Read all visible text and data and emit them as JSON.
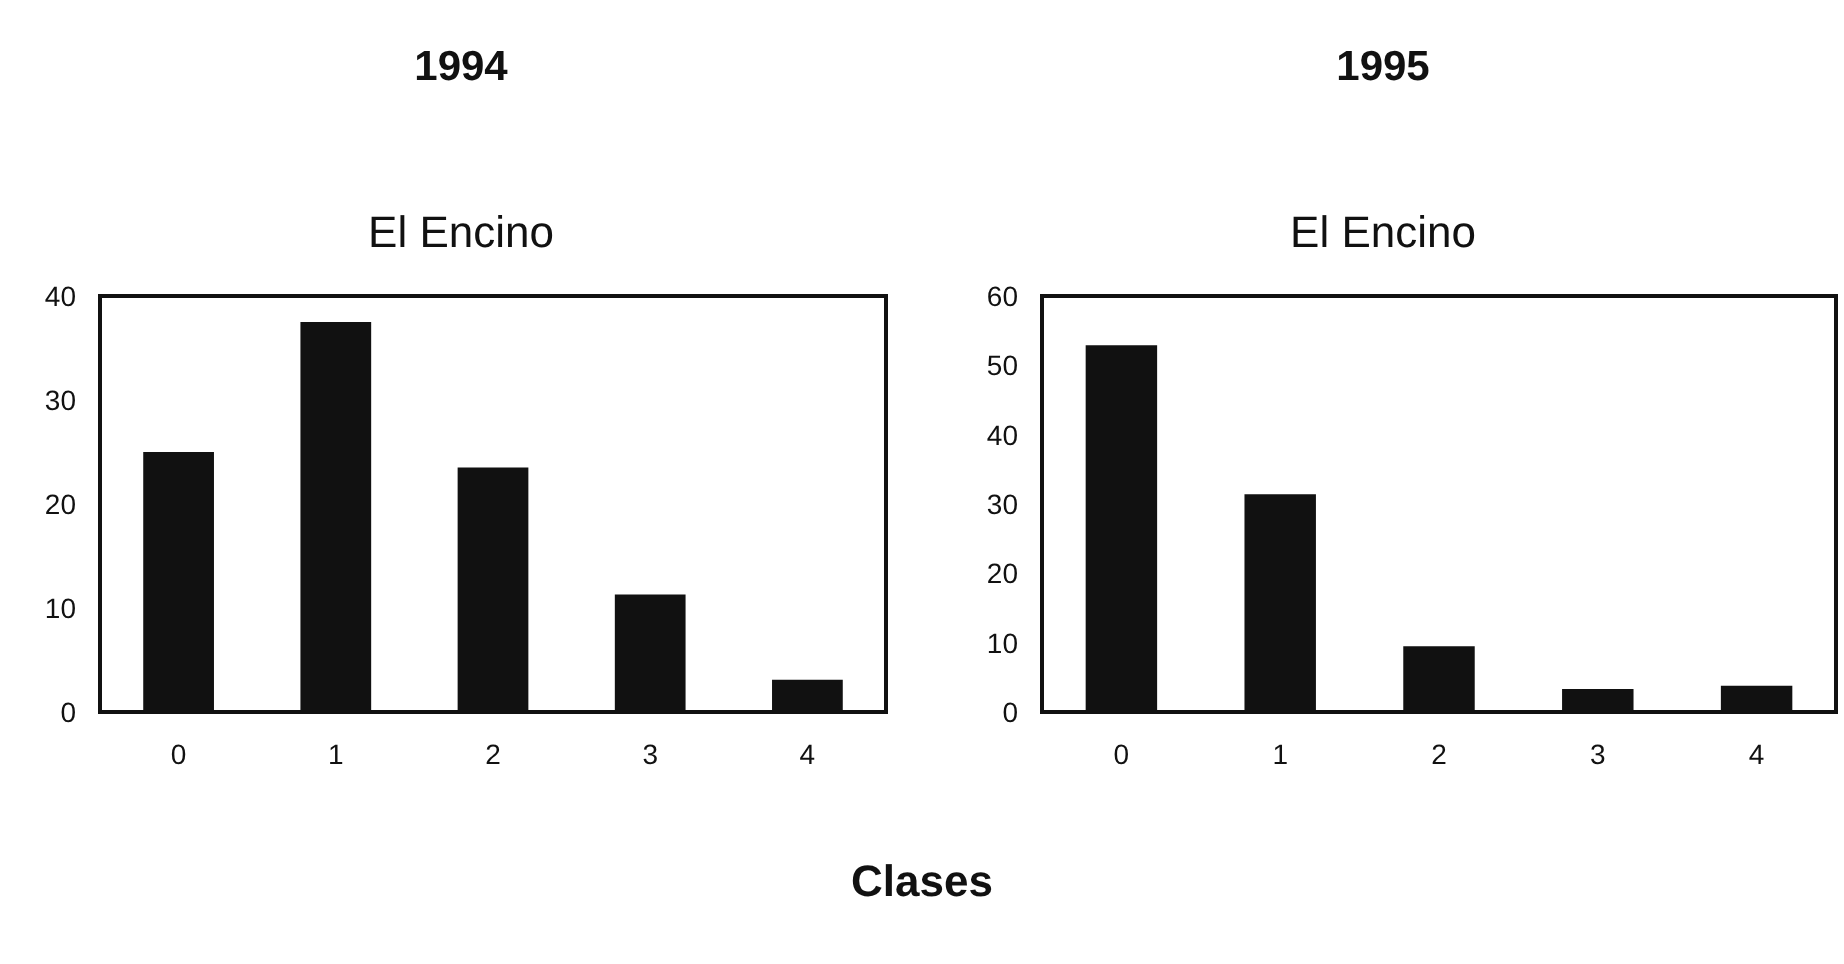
{
  "chart_data": [
    {
      "type": "bar",
      "title": "1994",
      "subtitle": "El Encino",
      "categories": [
        "0",
        "1",
        "2",
        "3",
        "4"
      ],
      "values": [
        25,
        37.5,
        23.5,
        11.3,
        3.1
      ],
      "color": "#111111",
      "ylim": [
        0,
        40
      ],
      "yticks": [
        0,
        10,
        20,
        30,
        40
      ],
      "grid": false
    },
    {
      "type": "bar",
      "title": "1995",
      "subtitle": "El Encino",
      "xlabel": "Clases",
      "categories": [
        "0",
        "1",
        "2",
        "3",
        "4"
      ],
      "values": [
        52.9,
        31.4,
        9.5,
        3.3,
        3.8
      ],
      "color": "#111111",
      "ylim": [
        0,
        60
      ],
      "yticks": [
        0,
        10,
        20,
        30,
        40,
        50,
        60
      ],
      "grid": false
    }
  ]
}
